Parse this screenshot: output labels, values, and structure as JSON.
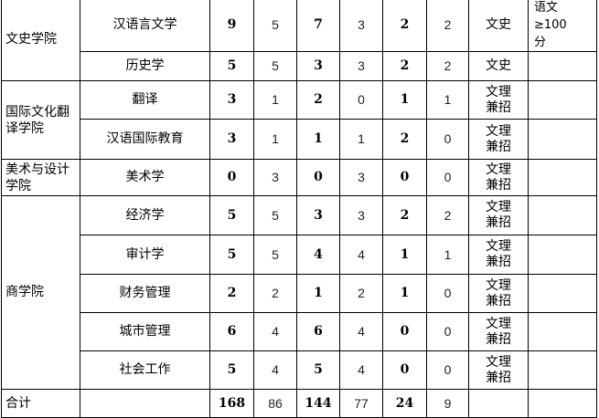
{
  "rows": [
    {
      "college": "文史学院",
      "major": "汉语言文学",
      "a": "9",
      "b": "5",
      "c": "7",
      "d": "3",
      "e": "2",
      "f": "2",
      "type": "文史",
      "note": "语文≥100分"
    },
    {
      "major": "历史学",
      "a": "5",
      "b": "5",
      "c": "3",
      "d": "3",
      "e": "2",
      "f": "2",
      "type": "文史",
      "note": ""
    },
    {
      "college": "国际文化翻译学院",
      "major": "翻译",
      "a": "3",
      "b": "1",
      "c": "2",
      "d": "0",
      "e": "1",
      "f": "1",
      "type": "文理兼招",
      "note": ""
    },
    {
      "major": "汉语国际教育",
      "a": "3",
      "b": "1",
      "c": "1",
      "d": "1",
      "e": "2",
      "f": "0",
      "type": "文理兼招",
      "note": ""
    },
    {
      "college": "美术与设计学院",
      "major": "美术学",
      "a": "0",
      "b": "3",
      "c": "0",
      "d": "3",
      "e": "0",
      "f": "0",
      "type": "文理兼招",
      "note": ""
    },
    {
      "college": "商学院",
      "major": "经济学",
      "a": "5",
      "b": "5",
      "c": "3",
      "d": "3",
      "e": "2",
      "f": "2",
      "type": "文理兼招",
      "note": ""
    },
    {
      "major": "审计学",
      "a": "5",
      "b": "5",
      "c": "4",
      "d": "4",
      "e": "1",
      "f": "1",
      "type": "文理兼招",
      "note": ""
    },
    {
      "major": "财务管理",
      "a": "2",
      "b": "2",
      "c": "1",
      "d": "2",
      "e": "1",
      "f": "0",
      "type": "文理兼招",
      "note": ""
    },
    {
      "major": "城市管理",
      "a": "6",
      "b": "4",
      "c": "6",
      "d": "4",
      "e": "0",
      "f": "0",
      "type": "文理兼招",
      "note": ""
    },
    {
      "major": "社会工作",
      "a": "5",
      "b": "4",
      "c": "5",
      "d": "4",
      "e": "0",
      "f": "0",
      "type": "文理兼招",
      "note": ""
    }
  ],
  "total": {
    "label": "合计",
    "a": "168",
    "b": "86",
    "c": "144",
    "d": "77",
    "e": "24",
    "f": "9"
  }
}
